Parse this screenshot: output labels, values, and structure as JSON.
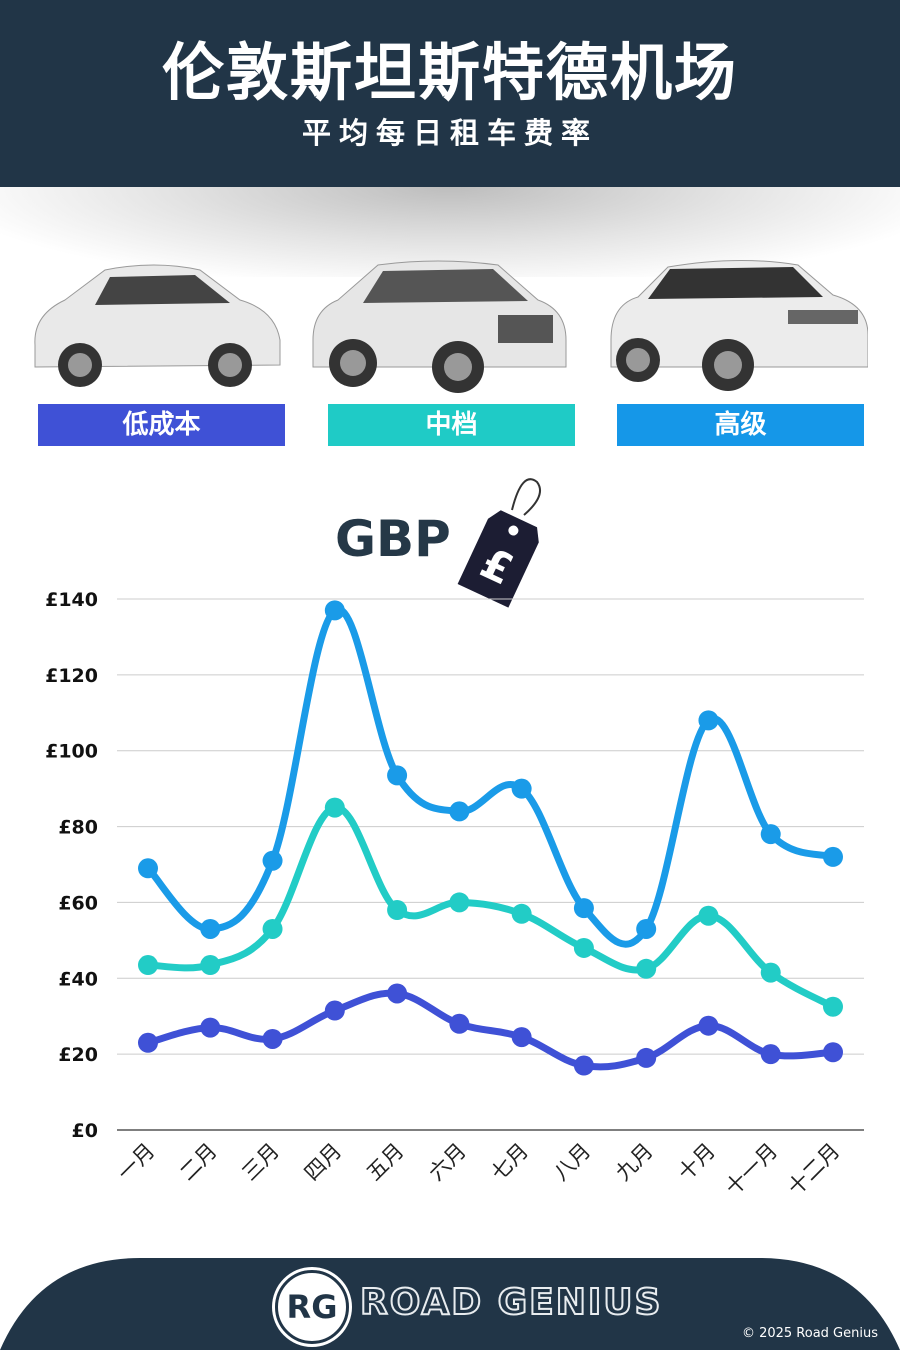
{
  "header": {
    "title": "伦敦斯坦斯特德机场",
    "subtitle": "平均每日租车费率"
  },
  "categories": [
    {
      "label": "低成本",
      "color": "#3f51d6"
    },
    {
      "label": "中档",
      "color": "#1fcbc6"
    },
    {
      "label": "高级",
      "color": "#1597e8"
    }
  ],
  "currency": {
    "label": "GBP",
    "tag_symbol": "£",
    "icon": "price-tag-icon"
  },
  "chart_data": {
    "type": "line",
    "categories": [
      "一月",
      "二月",
      "三月",
      "四月",
      "五月",
      "六月",
      "七月",
      "八月",
      "九月",
      "十月",
      "十一月",
      "十二月"
    ],
    "yticks": [
      "£0",
      "£20",
      "£40",
      "£60",
      "£80",
      "£100",
      "£120",
      "£140"
    ],
    "ylim": [
      0,
      140
    ],
    "grid": true,
    "series": [
      {
        "name": "低成本",
        "color": "#3f51d6",
        "values": [
          23,
          27,
          24,
          31.5,
          36,
          28,
          24.5,
          17,
          19,
          27.5,
          20,
          20.5
        ]
      },
      {
        "name": "中档",
        "color": "#22ccc6",
        "values": [
          43.5,
          43.5,
          53,
          85,
          58,
          60,
          57,
          48,
          42.5,
          56.5,
          41.5,
          32.5
        ]
      },
      {
        "name": "高级",
        "color": "#1a9be8",
        "values": [
          69,
          53,
          71,
          137,
          93.5,
          84,
          90,
          58.5,
          53,
          108,
          78,
          72
        ]
      }
    ]
  },
  "footer": {
    "logo": "RG",
    "brand": "ROAD GENIUS",
    "copyright": "© 2025 Road Genius"
  }
}
